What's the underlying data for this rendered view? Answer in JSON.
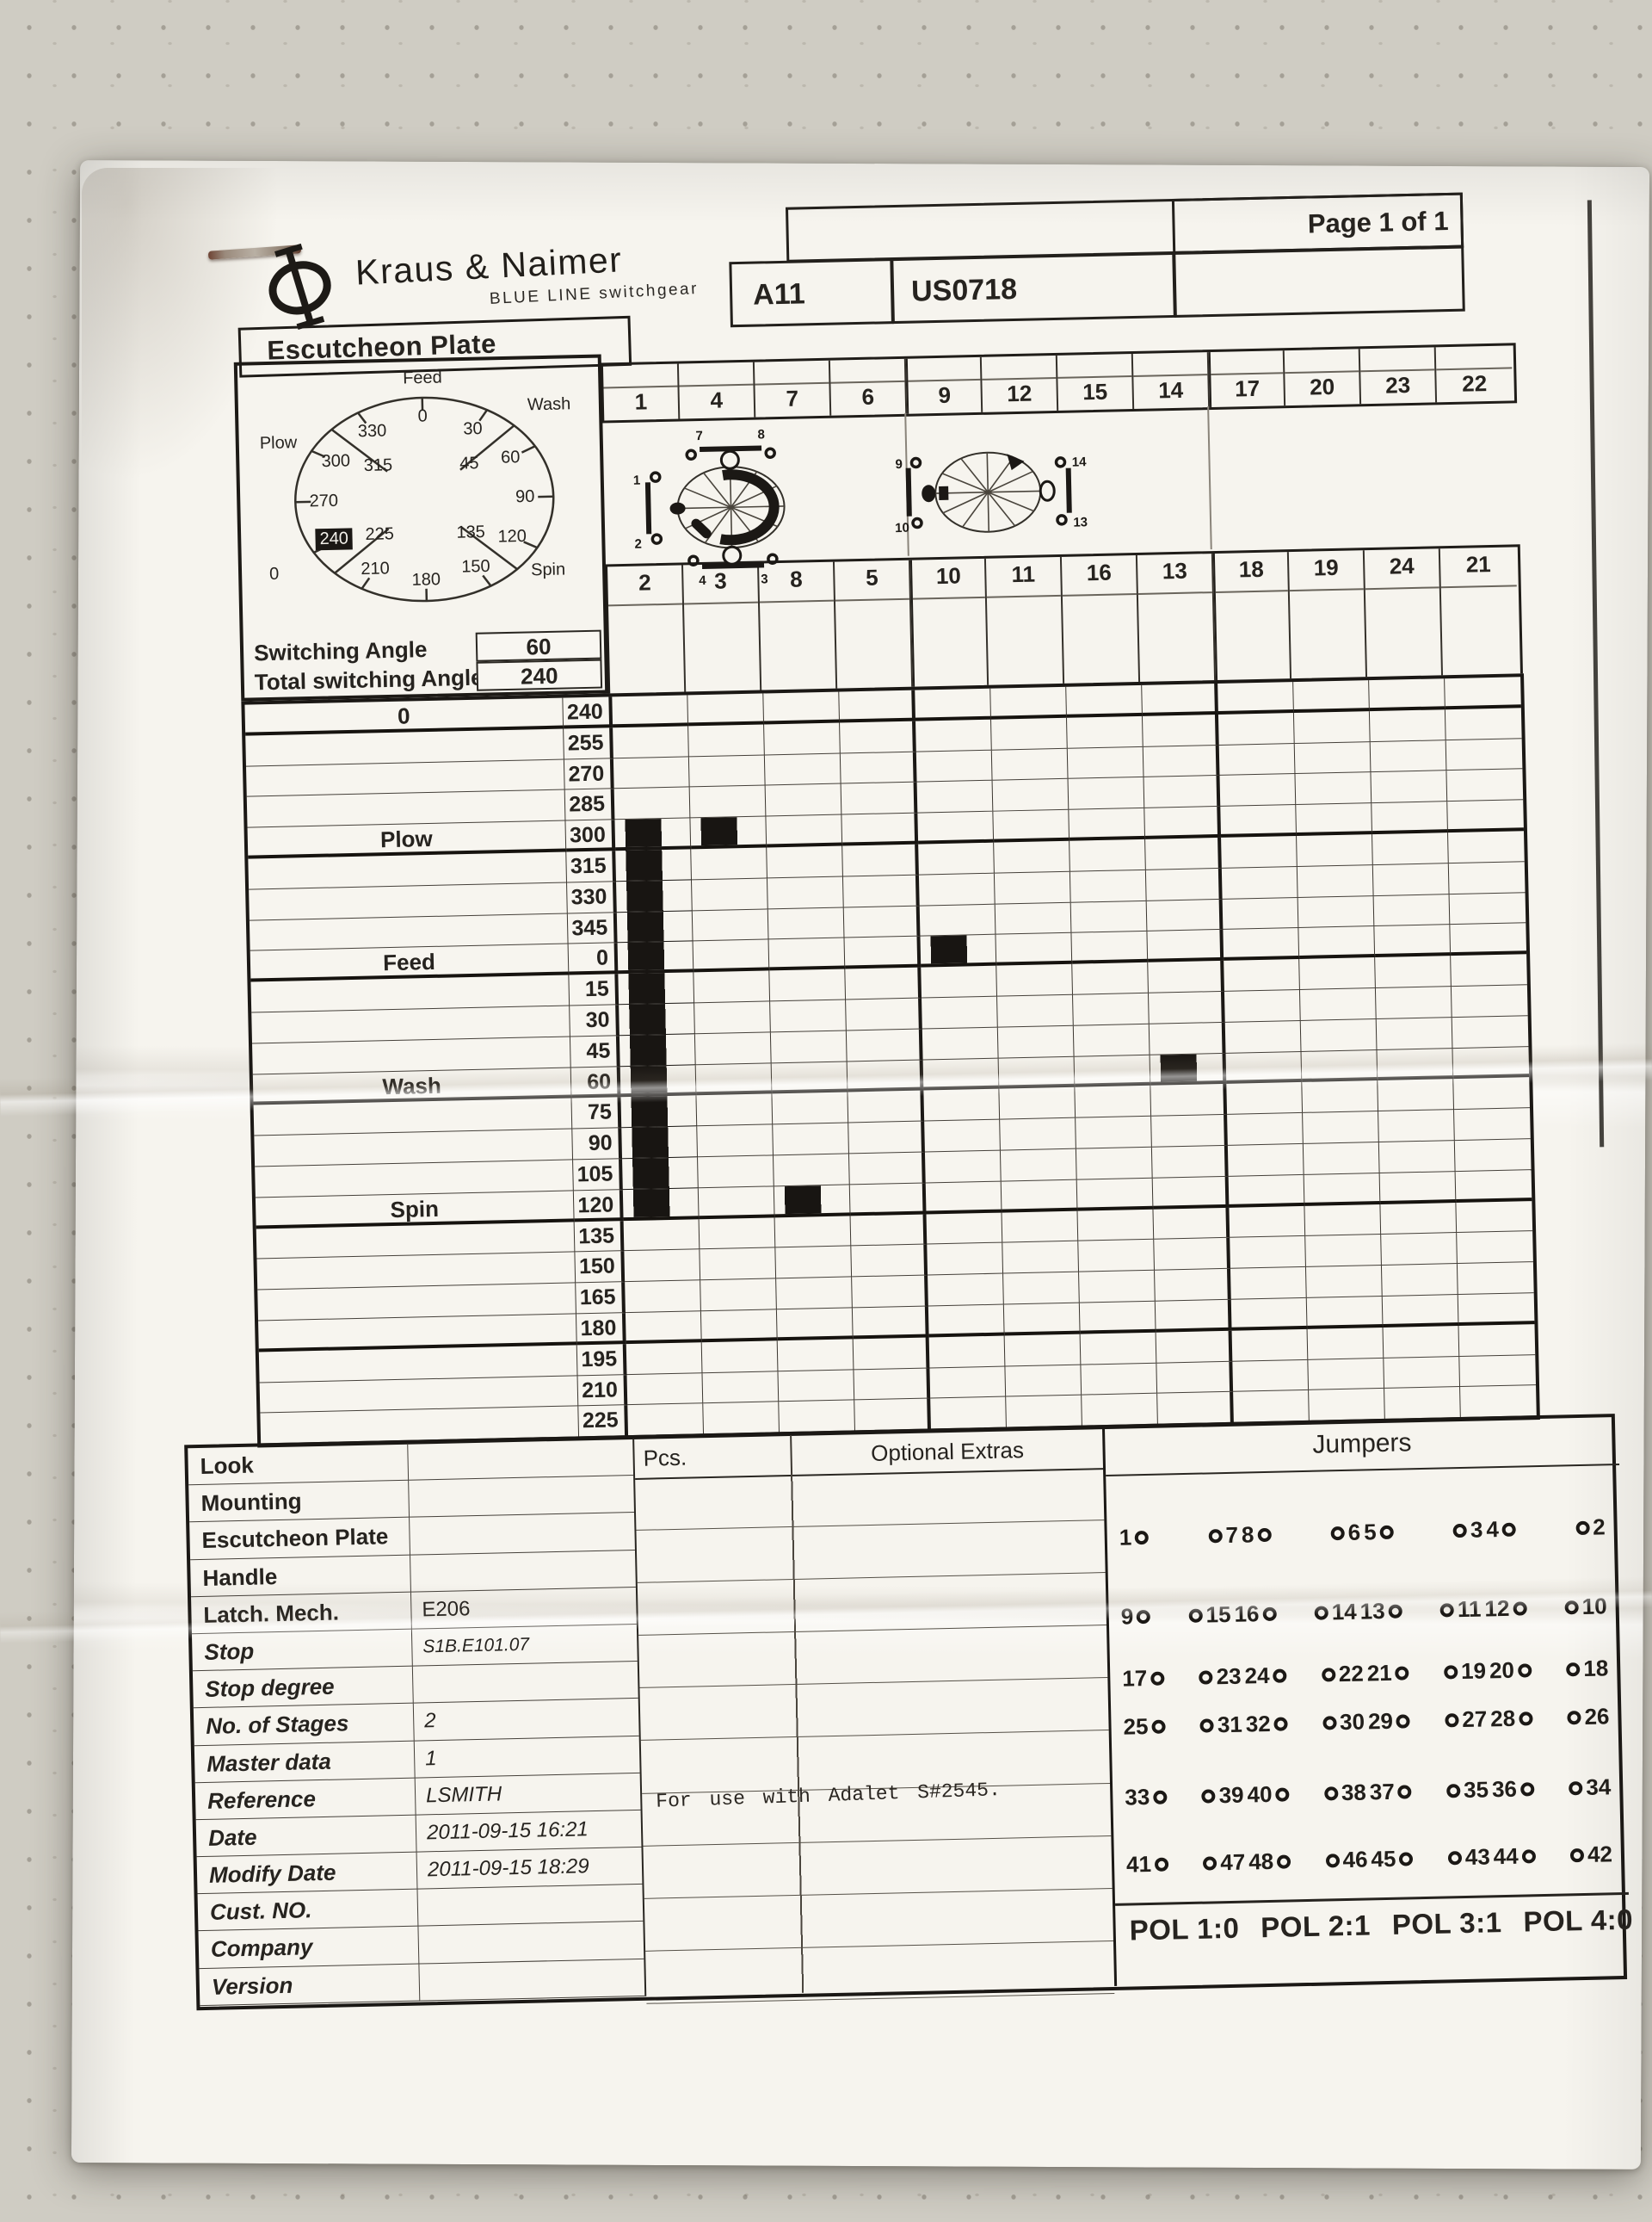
{
  "photo": {
    "background_hex": "#cfccc3",
    "paper_hex": "#f6f4ee",
    "ink_hex": "#26231f"
  },
  "brand": {
    "logo_glyph": "phi-monogram",
    "name": "Kraus & Naimer",
    "tagline": "BLUE LINE switchgear"
  },
  "header": {
    "title": "Escutcheon Plate",
    "model": "A11",
    "order": "US0718",
    "page": "Page 1 of 1"
  },
  "dial": {
    "position_labels": {
      "top": "Feed",
      "right_top": "Wash",
      "right_bottom": "Spin",
      "left": "Plow",
      "zero": "0"
    },
    "numbers": [
      "0",
      "30",
      "60",
      "90",
      "120",
      "150",
      "180",
      "210",
      "240",
      "270",
      "300",
      "330"
    ],
    "mid_numbers": [
      "45",
      "135",
      "225",
      "315"
    ],
    "highlighted": "240"
  },
  "switching": {
    "angle_label": "Switching Angle",
    "angle_value": "60",
    "total_label": "Total switching Angle",
    "total_value": "240"
  },
  "contact_row_top": [
    "1",
    "4",
    "7",
    "6",
    "9",
    "12",
    "15",
    "14",
    "17",
    "20",
    "23",
    "22"
  ],
  "contact_row_bottom": [
    "2",
    "3",
    "8",
    "5",
    "10",
    "11",
    "16",
    "13",
    "18",
    "19",
    "24",
    "21"
  ],
  "cam_left": {
    "top_left": "7",
    "top_right": "8",
    "left_top": "1",
    "left_bottom": "2",
    "bottom_left": "4",
    "bottom_right": "3"
  },
  "cam_right": {
    "left_top": "9",
    "left_bottom": "10",
    "right_top": "14",
    "right_bottom": "13"
  },
  "grid": {
    "angles": [
      "240",
      "255",
      "270",
      "285",
      "300",
      "315",
      "330",
      "345",
      "0",
      "15",
      "30",
      "45",
      "60",
      "75",
      "90",
      "105",
      "120",
      "135",
      "150",
      "165",
      "180",
      "195",
      "210",
      "225"
    ],
    "position_labels": {
      "240": "0",
      "300": "Plow",
      "0": "Feed",
      "60": "Wash",
      "120": "Spin"
    },
    "thick_below": [
      "240",
      "300",
      "0",
      "60",
      "120",
      "180"
    ],
    "marks": [
      {
        "contact": "2",
        "type": "range",
        "from": "300",
        "to": "120"
      },
      {
        "contact": "3",
        "type": "single",
        "at": "300"
      },
      {
        "contact": "10",
        "type": "single",
        "at": "0"
      },
      {
        "contact": "13",
        "type": "single",
        "at": "60"
      },
      {
        "contact": "8",
        "type": "single",
        "at": "120"
      }
    ]
  },
  "info_table": {
    "rows": [
      {
        "label": "Look",
        "value": "",
        "italic": false,
        "small": false
      },
      {
        "label": "Mounting",
        "value": "",
        "italic": false,
        "small": false
      },
      {
        "label": "Escutcheon Plate",
        "value": "",
        "italic": false,
        "small": false
      },
      {
        "label": "Handle",
        "value": "",
        "italic": false,
        "small": false
      },
      {
        "label": "Latch. Mech.",
        "value": "E206",
        "italic": false,
        "small": false
      },
      {
        "label": "Stop",
        "value": "S1B.E101.07",
        "italic": true,
        "small": true
      },
      {
        "label": "Stop degree",
        "value": "",
        "italic": true,
        "small": false
      },
      {
        "label": "No. of Stages",
        "value": "2",
        "italic": true,
        "small": false
      },
      {
        "label": "Master data",
        "value": "1",
        "italic": true,
        "small": false
      },
      {
        "label": "Reference",
        "value": "LSMITH",
        "italic": true,
        "small": false
      },
      {
        "label": "Date",
        "value": "2011-09-15 16:21",
        "italic": true,
        "small": false
      },
      {
        "label": "Modify Date",
        "value": "2011-09-15 18:29",
        "italic": true,
        "small": false
      },
      {
        "label": "Cust. NO.",
        "value": "",
        "italic": true,
        "small": false
      },
      {
        "label": "Company",
        "value": "",
        "italic": true,
        "small": false
      },
      {
        "label": "Version",
        "value": "",
        "italic": true,
        "small": false
      }
    ]
  },
  "middle": {
    "pcs_header": "Pcs.",
    "extras_header": "Optional Extras",
    "note": "For use with Adalet S#2545."
  },
  "jumpers": {
    "title": "Jumpers",
    "rows": [
      [
        "1",
        "7",
        "8",
        "6",
        "5",
        "3",
        "4",
        "2"
      ],
      [
        "9",
        "15",
        "16",
        "14",
        "13",
        "11",
        "12",
        "10"
      ],
      [
        "17",
        "23",
        "24",
        "22",
        "21",
        "19",
        "20",
        "18"
      ],
      [
        "25",
        "31",
        "32",
        "30",
        "29",
        "27",
        "28",
        "26"
      ],
      [
        "33",
        "39",
        "40",
        "38",
        "37",
        "35",
        "36",
        "34"
      ],
      [
        "41",
        "47",
        "48",
        "46",
        "45",
        "43",
        "44",
        "42"
      ]
    ]
  },
  "pol": {
    "items": [
      "POL 1:0",
      "POL 2:1",
      "POL 3:1",
      "POL 4:0"
    ]
  }
}
